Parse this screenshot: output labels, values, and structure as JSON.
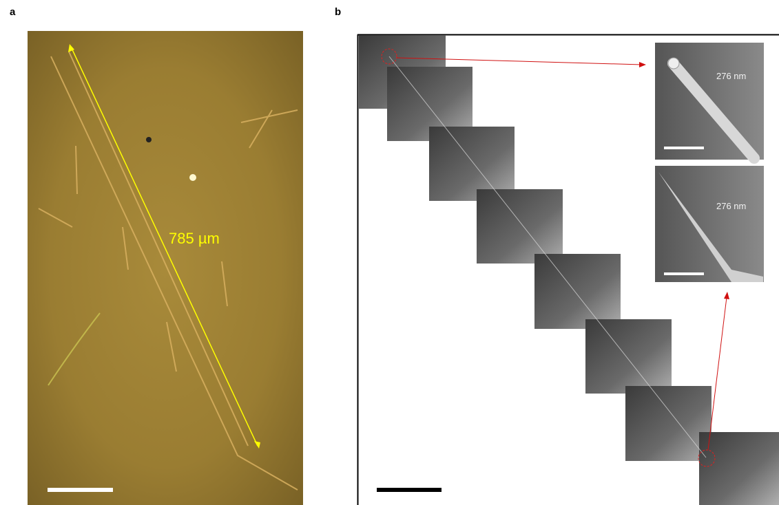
{
  "panel_a": {
    "label": "a",
    "length_annotation": "785 µm"
  },
  "panel_b": {
    "label": "b",
    "insets": [
      {
        "width_annotation": "276 nm"
      },
      {
        "width_annotation": "276 nm"
      }
    ]
  }
}
